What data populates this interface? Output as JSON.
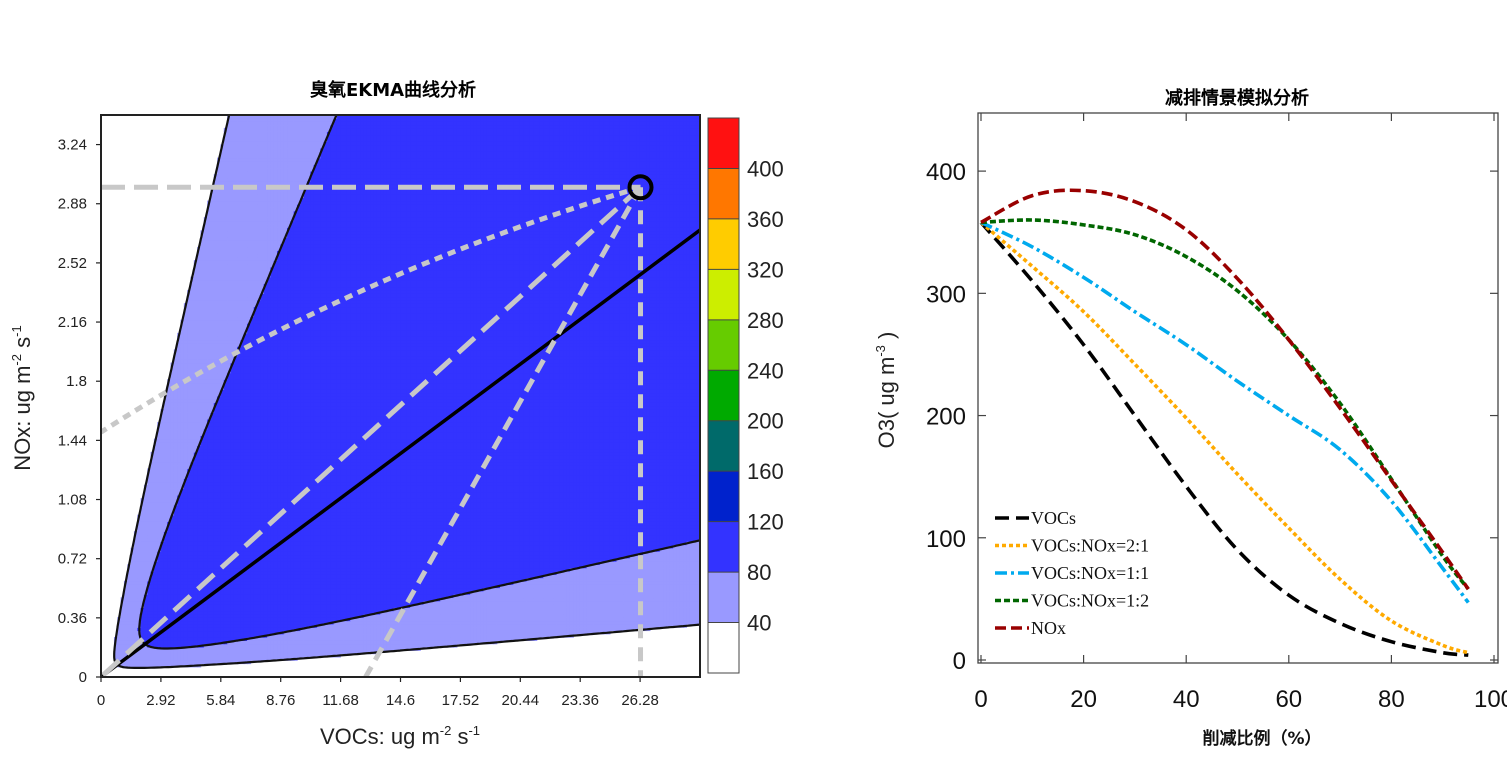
{
  "chart_data": [
    {
      "type": "heatmap",
      "title": "臭氧EKMA曲线分析",
      "xlabel_main": "VOCs: ug m",
      "xlabel_exp1": "-2",
      "xlabel_mid": " s",
      "xlabel_exp2": "-1",
      "ylabel_main": "NOx:  ug m",
      "ylabel_exp1": "-2",
      "ylabel_mid": " s",
      "ylabel_exp2": "-1",
      "xlim": [
        0,
        29.2
      ],
      "ylim": [
        0,
        3.42
      ],
      "x_ticks": [
        "0",
        "2.92",
        "5.84",
        "8.76",
        "11.68",
        "14.6",
        "17.52",
        "20.44",
        "23.36",
        "26.28"
      ],
      "y_ticks": [
        "0",
        "0.36",
        "0.72",
        "1.08",
        "1.44",
        "1.8",
        "2.16",
        "2.52",
        "2.88",
        "3.24"
      ],
      "colorbar_ticks": [
        "40",
        "80",
        "120",
        "160",
        "200",
        "240",
        "280",
        "320",
        "360",
        "400"
      ],
      "contour_levels": [
        40,
        80,
        120,
        160,
        200,
        240,
        280,
        320,
        360,
        400
      ],
      "level_colors": [
        "#ffffff",
        "#9999ff",
        "#3333ff",
        "#0022cc",
        "#006a6a",
        "#00aa00",
        "#66cc00",
        "#ccee00",
        "#ffcc00",
        "#ff7700",
        "#ff1111"
      ],
      "current_point": {
        "x": 26.3,
        "y": 2.98
      },
      "scenario_end_points": [
        {
          "x": 0,
          "y": 0
        },
        {
          "x": 0,
          "y": 1.49
        },
        {
          "x": 12.9,
          "y": 0
        },
        {
          "x": 26.3,
          "y": 0
        }
      ]
    },
    {
      "type": "line",
      "title": "减排情景模拟分析",
      "xlabel": "削减比例（%）",
      "ylabel_main": "O3( ug m",
      "ylabel_exp": "-3",
      "ylabel_end": " )",
      "xlim": [
        0,
        100
      ],
      "ylim": [
        0,
        450
      ],
      "x_ticks": [
        "0",
        "20",
        "40",
        "60",
        "80",
        "100"
      ],
      "y_ticks": [
        "0",
        "100",
        "200",
        "300",
        "400"
      ],
      "legend_position": "bottom-left",
      "series": [
        {
          "name": "VOCs",
          "color": "#000000",
          "dash": "14 7",
          "x": [
            0,
            10,
            20,
            30,
            40,
            50,
            60,
            70,
            80,
            90,
            95
          ],
          "y": [
            358,
            310,
            258,
            200,
            142,
            90,
            53,
            30,
            15,
            6,
            4
          ]
        },
        {
          "name": "VOCs:NOx=2:1",
          "color": "#ffaa00",
          "dash": "4 3",
          "x": [
            0,
            10,
            20,
            30,
            40,
            50,
            60,
            70,
            80,
            90,
            95
          ],
          "y": [
            358,
            322,
            285,
            242,
            198,
            152,
            108,
            66,
            32,
            12,
            6
          ]
        },
        {
          "name": "VOCs:NOx=1:1",
          "color": "#00aaee",
          "dash": "12 4 3 4",
          "x": [
            0,
            10,
            20,
            30,
            40,
            50,
            60,
            70,
            80,
            90,
            95
          ],
          "y": [
            358,
            338,
            313,
            285,
            258,
            228,
            200,
            172,
            130,
            75,
            47
          ]
        },
        {
          "name": "VOCs:NOx=1:2",
          "color": "#006600",
          "dash": "6 3",
          "x": [
            0,
            10,
            20,
            30,
            40,
            50,
            60,
            70,
            80,
            90,
            95
          ],
          "y": [
            358,
            360,
            356,
            348,
            330,
            302,
            262,
            210,
            148,
            85,
            58
          ]
        },
        {
          "name": "NOx",
          "color": "#990000",
          "dash": "11 5",
          "x": [
            0,
            10,
            20,
            30,
            40,
            50,
            60,
            70,
            80,
            90,
            95
          ],
          "y": [
            358,
            380,
            384,
            375,
            352,
            312,
            262,
            206,
            147,
            88,
            58
          ]
        }
      ]
    }
  ]
}
